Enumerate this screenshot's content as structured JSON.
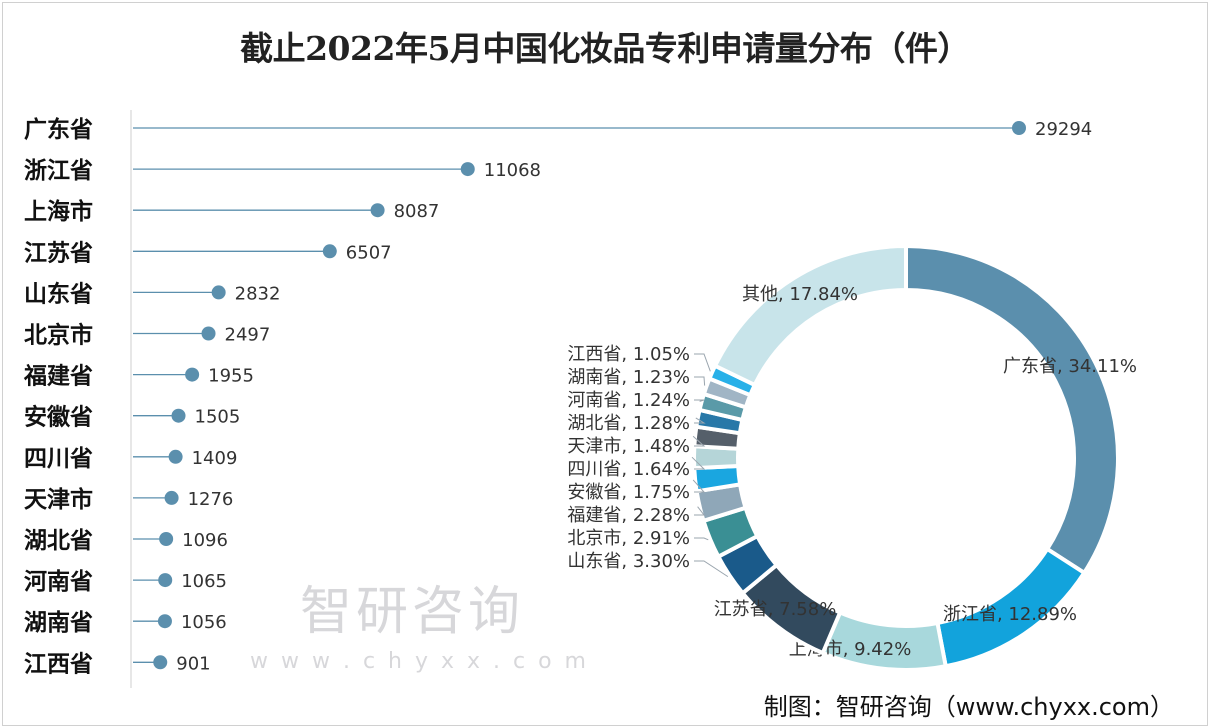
{
  "chart_data": [
    {
      "type": "lollipop",
      "title": "截止2022年5月中国化妆品专利申请量分布（件）",
      "categories": [
        "广东省",
        "浙江省",
        "上海市",
        "江苏省",
        "山东省",
        "北京市",
        "福建省",
        "安徽省",
        "四川省",
        "天津市",
        "湖北省",
        "河南省",
        "湖南省",
        "江西省"
      ],
      "values": [
        29294,
        11068,
        8087,
        6507,
        2832,
        2497,
        1955,
        1505,
        1409,
        1276,
        1096,
        1065,
        1056,
        901
      ],
      "color": "#5b8fad"
    },
    {
      "type": "donut",
      "labels": [
        "广东省",
        "浙江省",
        "上海市",
        "江苏省",
        "山东省",
        "北京市",
        "福建省",
        "安徽省",
        "四川省",
        "天津市",
        "湖北省",
        "河南省",
        "湖南省",
        "江西省",
        "其他"
      ],
      "values": [
        34.11,
        12.89,
        9.42,
        7.58,
        3.3,
        2.91,
        2.28,
        1.75,
        1.64,
        1.48,
        1.28,
        1.24,
        1.23,
        1.05,
        17.84
      ],
      "colors": [
        "#5b8fad",
        "#12a3dc",
        "#a8d8dc",
        "#324a5e",
        "#1a5a8a",
        "#3a8f94",
        "#8fa7b8",
        "#1aa6e0",
        "#b5d5d8",
        "#555f6a",
        "#2878a8",
        "#5a9aa8",
        "#a0b5c5",
        "#28b0e8",
        "#c8e4ea"
      ]
    }
  ],
  "credit": "制图：智研咨询（www.chyxx.com）",
  "watermark": {
    "brand": "智研咨询",
    "url": "w w w . c h y x x . c o m"
  }
}
